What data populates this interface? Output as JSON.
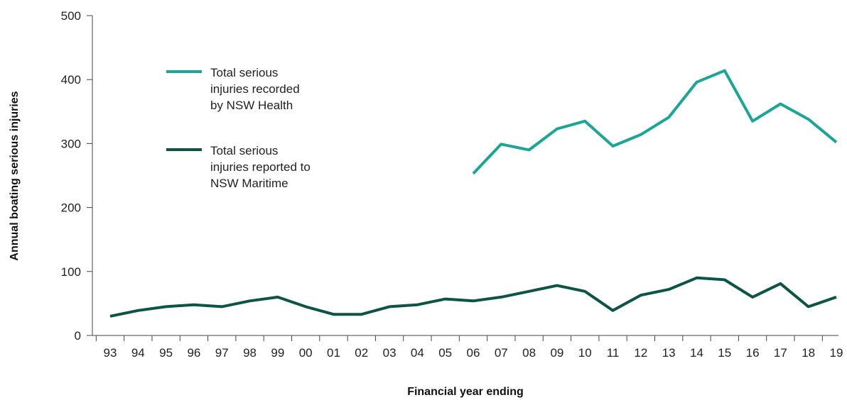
{
  "chart_data": {
    "type": "line",
    "title": "",
    "xlabel": "Financial year ending",
    "ylabel": "Annual boating serious injuries",
    "categories": [
      "93",
      "94",
      "95",
      "96",
      "97",
      "98",
      "99",
      "00",
      "01",
      "02",
      "03",
      "04",
      "05",
      "06",
      "07",
      "08",
      "09",
      "10",
      "11",
      "12",
      "13",
      "14",
      "15",
      "16",
      "17",
      "18",
      "19"
    ],
    "ylim": [
      0,
      500
    ],
    "yticks": [
      0,
      100,
      200,
      300,
      400,
      500
    ],
    "grid": false,
    "legend_position": "upper-left",
    "series": [
      {
        "name": "Total serious injuries recorded by NSW Health",
        "legend_lines": [
          "Total serious",
          "injuries recorded",
          "by NSW Health"
        ],
        "color": "#19a696",
        "values": [
          null,
          null,
          null,
          null,
          null,
          null,
          null,
          null,
          null,
          null,
          null,
          null,
          null,
          253,
          299,
          290,
          323,
          335,
          296,
          314,
          341,
          396,
          414,
          335,
          362,
          338,
          302
        ]
      },
      {
        "name": "Total serious injuries reported to NSW Maritime",
        "legend_lines": [
          "Total serious",
          "injuries reported to",
          "NSW Maritime"
        ],
        "color": "#0b5446",
        "values": [
          30,
          39,
          45,
          48,
          45,
          54,
          60,
          45,
          33,
          33,
          45,
          48,
          57,
          54,
          60,
          69,
          78,
          69,
          39,
          63,
          72,
          90,
          87,
          60,
          81,
          45,
          60
        ]
      }
    ]
  }
}
